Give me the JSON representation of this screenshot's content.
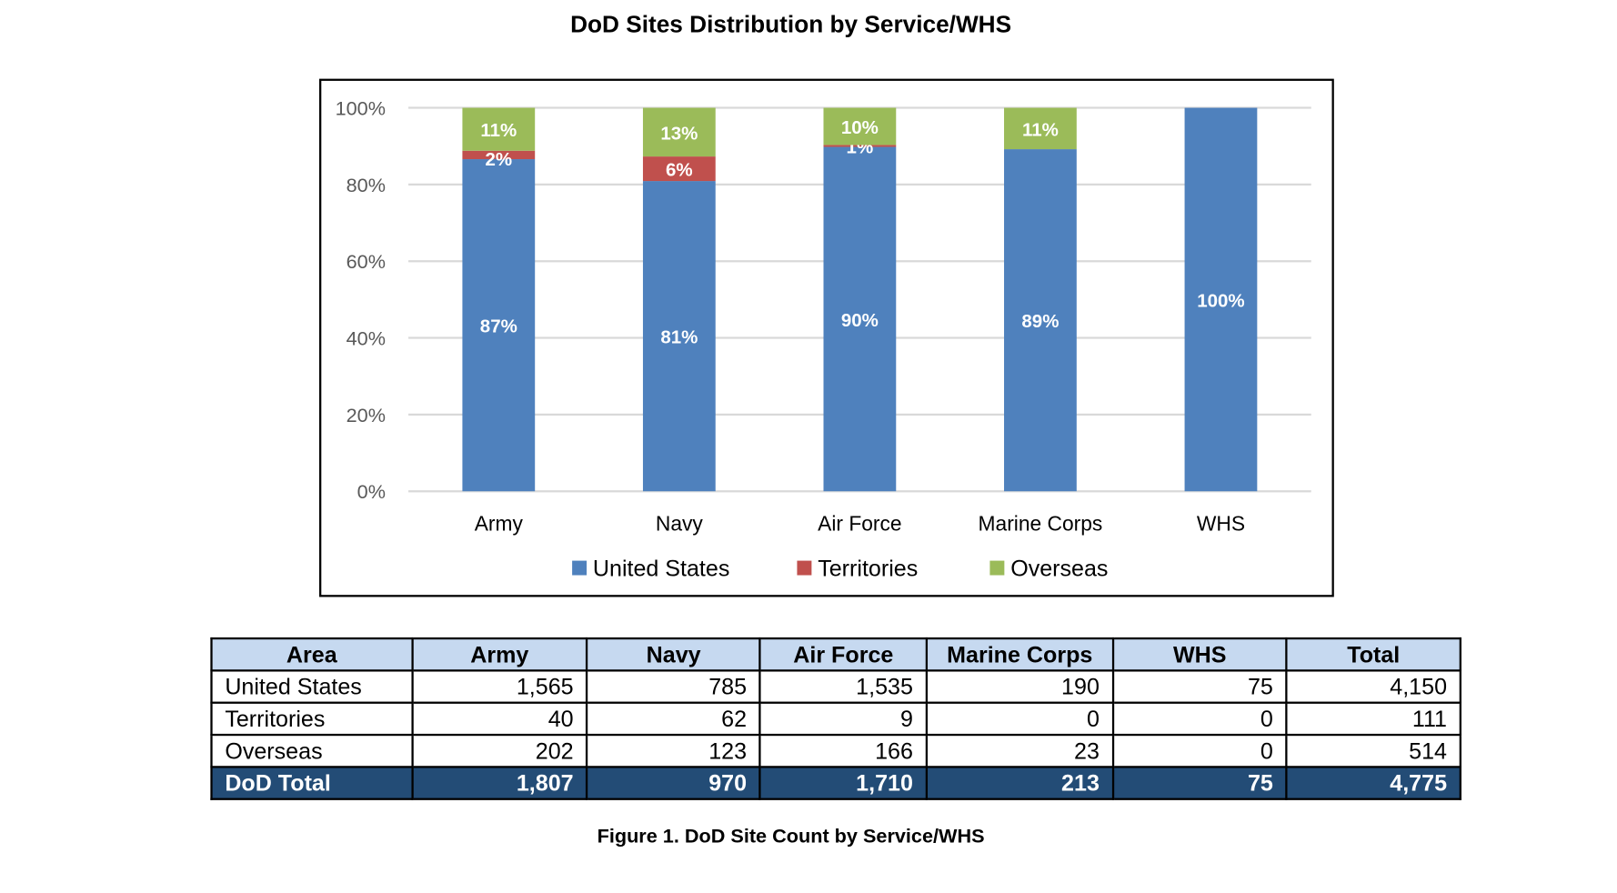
{
  "title": "DoD Sites Distribution by Service/WHS",
  "chart_data": {
    "type": "bar",
    "stacked": true,
    "normalized": true,
    "title": "DoD Sites Distribution by Service/WHS",
    "categories": [
      "Army",
      "Navy",
      "Air Force",
      "Marine Corps",
      "WHS"
    ],
    "yticks": [
      "0%",
      "20%",
      "40%",
      "60%",
      "80%",
      "100%"
    ],
    "ylim": [
      0,
      100
    ],
    "grid": true,
    "legend": "bottom",
    "series": [
      {
        "name": "United States",
        "color": "#4f81bd",
        "values": [
          86.6,
          80.9,
          89.8,
          89.2,
          100
        ],
        "labels": [
          "87%",
          "81%",
          "90%",
          "89%",
          "100%"
        ]
      },
      {
        "name": "Territories",
        "color": "#c0504d",
        "values": [
          2.2,
          6.4,
          0.5,
          0,
          0
        ],
        "labels": [
          "2%",
          "6%",
          "1%",
          "",
          ""
        ]
      },
      {
        "name": "Overseas",
        "color": "#9bbb59",
        "values": [
          11.2,
          12.7,
          9.7,
          10.8,
          0
        ],
        "labels": [
          "11%",
          "13%",
          "10%",
          "11%",
          ""
        ]
      }
    ]
  },
  "table": {
    "headers": [
      "Area",
      "Army",
      "Navy",
      "Air Force",
      "Marine Corps",
      "WHS",
      "Total"
    ],
    "rows": [
      [
        "United States",
        "1,565",
        "785",
        "1,535",
        "190",
        "75",
        "4,150"
      ],
      [
        "Territories",
        "40",
        "62",
        "9",
        "0",
        "0",
        "111"
      ],
      [
        "Overseas",
        "202",
        "123",
        "166",
        "23",
        "0",
        "514"
      ]
    ],
    "total_row": [
      "DoD Total",
      "1,807",
      "970",
      "1,710",
      "213",
      "75",
      "4,775"
    ]
  },
  "caption": "Figure 1.  DoD Site Count by Service/WHS"
}
